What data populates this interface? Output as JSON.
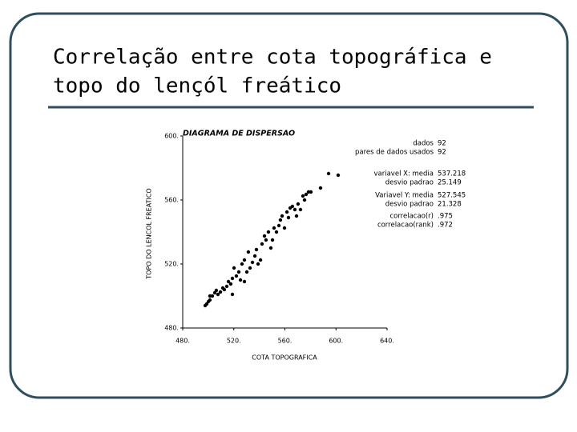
{
  "slide": {
    "title_lines": [
      "Correlação entre cota topográfica e",
      "topo do lençól freático"
    ]
  },
  "chart_data": {
    "type": "scatter",
    "title": "DIAGRAMA DE DISPERSAO",
    "x_label": "COTA TOPOGRAFICA",
    "y_label": "TOPO DO LENCOL FREATICO",
    "xlim": [
      480,
      640
    ],
    "ylim": [
      480,
      600
    ],
    "xticks": [
      {
        "value": 480,
        "label": "480."
      },
      {
        "value": 520,
        "label": "520."
      },
      {
        "value": 560,
        "label": "560."
      },
      {
        "value": 600,
        "label": "600."
      },
      {
        "value": 640,
        "label": "640."
      }
    ],
    "yticks": [
      {
        "value": 480,
        "label": "480."
      },
      {
        "value": 520,
        "label": "520."
      },
      {
        "value": 560,
        "label": "560."
      },
      {
        "value": 600,
        "label": "600."
      }
    ],
    "color": "#000000",
    "x": [
      497.6,
      498.8,
      500.1,
      501.3,
      503.2,
      505.1,
      506.3,
      507.6,
      509.5,
      511.4,
      512.6,
      514.5,
      515.8,
      517.6,
      518.9,
      520.2,
      522,
      523.9,
      525.2,
      526.4,
      528.3,
      530.2,
      531.4,
      532.7,
      534.6,
      536.5,
      537.7,
      539,
      540.9,
      542.1,
      544,
      545.2,
      547.1,
      549,
      550.3,
      551.5,
      553.4,
      555.3,
      556.5,
      557.8,
      559.7,
      561.6,
      562.8,
      564.1,
      565.9,
      567.8,
      569.1,
      570.3,
      572.2,
      574.1,
      575.4,
      576.6,
      578.5,
      580.4,
      587.9,
      594.2,
      601.7,
      518.9,
      528.3,
      501.3
    ],
    "values": [
      494,
      495,
      496.5,
      497.5,
      500,
      502,
      503.5,
      501,
      502.5,
      505,
      504,
      506,
      509,
      507.5,
      511,
      517.5,
      512.5,
      515,
      510,
      520,
      522.5,
      515,
      527.5,
      517.5,
      521,
      525,
      529,
      520,
      522.5,
      532.5,
      537.5,
      535,
      540,
      530,
      535,
      542.5,
      540,
      544,
      547.5,
      550,
      542.5,
      552.5,
      549,
      555,
      556,
      554,
      550,
      557.5,
      554,
      562.5,
      560,
      563.5,
      565,
      565,
      567.5,
      576.5,
      575.5,
      501,
      509,
      500
    ],
    "stats": [
      {
        "label": "dados",
        "value": "92"
      },
      {
        "label": "pares de dados usados",
        "value": "92"
      },
      {
        "label": "variavel X: media",
        "value": "537.218"
      },
      {
        "label": "desvio padrao",
        "value": "25.149"
      },
      {
        "label": "Variavel Y: media",
        "value": "527.545"
      },
      {
        "label": "desvio padrao",
        "value": "21.328"
      },
      {
        "label": "correlacao(r)",
        "value": ".975"
      },
      {
        "label": "correlacao(rank)",
        "value": ".972"
      }
    ]
  }
}
